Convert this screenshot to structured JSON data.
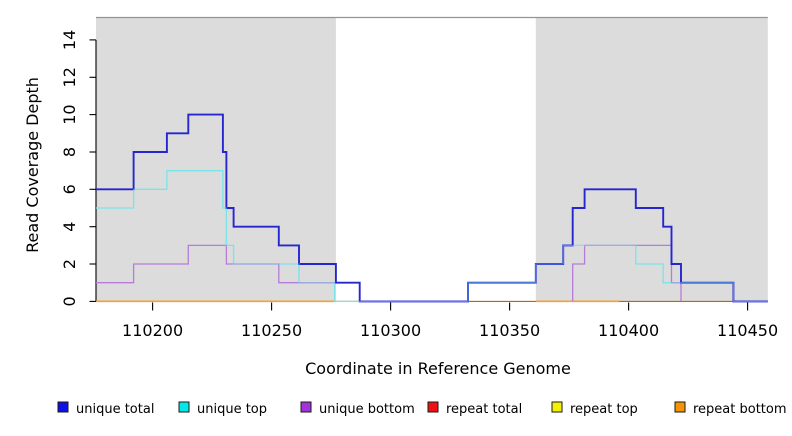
{
  "chart_data": {
    "type": "line",
    "subtype": "step-coverage",
    "title": "",
    "xlabel": "Coordinate in Reference Genome",
    "ylabel": "Read Coverage Depth",
    "xlim": [
      110176,
      110458
    ],
    "ylim": [
      0,
      15.2
    ],
    "x_ticks": [
      110200,
      110250,
      110300,
      110350,
      110400,
      110450
    ],
    "y_ticks": [
      0,
      2,
      4,
      6,
      8,
      10,
      12,
      14
    ],
    "grid": false,
    "legend_position": "bottom",
    "top_border_color": "#949494",
    "axis_color": "#000000",
    "shaded_regions": {
      "color": "#dcdcdc",
      "ranges": [
        [
          110176.2,
          110277
        ],
        [
          110361,
          110458.5
        ]
      ]
    },
    "series": [
      {
        "name": "unique total",
        "line_color": "#2626cf",
        "line_width": 1.9,
        "segments": [
          [
            [
              110176.2,
              6
            ],
            [
              110192,
              8
            ],
            [
              110206,
              9
            ],
            [
              110215,
              10
            ],
            [
              110229.5,
              8
            ],
            [
              110231,
              5
            ],
            [
              110234,
              4
            ],
            [
              110253,
              3
            ],
            [
              110261.5,
              2
            ],
            [
              110277,
              1
            ],
            [
              110287,
              0
            ],
            [
              110332.5,
              1
            ],
            [
              110361,
              2
            ],
            [
              110372.5,
              3
            ],
            [
              110376.5,
              5
            ],
            [
              110381.5,
              6
            ],
            [
              110403,
              5
            ],
            [
              110414.5,
              4
            ],
            [
              110418,
              2
            ],
            [
              110422,
              1
            ],
            [
              110444,
              0
            ],
            [
              110458.5,
              0
            ]
          ]
        ]
      },
      {
        "name": "unique top",
        "line_color": "#79e5e9",
        "line_width": 1.3,
        "segments": [
          [
            [
              110176.2,
              5
            ],
            [
              110192,
              6
            ],
            [
              110206,
              7
            ],
            [
              110229.5,
              5
            ],
            [
              110231,
              3
            ],
            [
              110234,
              2
            ],
            [
              110261.5,
              1
            ],
            [
              110276.5,
              0
            ],
            [
              110332.5,
              1
            ],
            [
              110361,
              2
            ],
            [
              110372.5,
              3
            ],
            [
              110403,
              2
            ],
            [
              110414.5,
              1
            ],
            [
              110444,
              0
            ],
            [
              110458.5,
              0
            ]
          ]
        ]
      },
      {
        "name": "unique bottom",
        "line_color": "#b77cd8",
        "line_width": 1.3,
        "segments": [
          [
            [
              110176.2,
              1
            ],
            [
              110192,
              2
            ],
            [
              110215,
              3
            ],
            [
              110231,
              2
            ],
            [
              110253,
              1
            ],
            [
              110287,
              0
            ]
          ],
          [
            [
              110376.5,
              0
            ],
            [
              110376.5,
              2
            ],
            [
              110381.5,
              3
            ],
            [
              110418,
              1
            ],
            [
              110422,
              0
            ]
          ]
        ]
      },
      {
        "name": "repeat total",
        "line_color": "#c94f60",
        "line_width": 1.1,
        "segments": [
          [
            [
              110176.2,
              0
            ],
            [
              110458.5,
              0
            ]
          ]
        ]
      },
      {
        "name": "repeat top",
        "line_color": "#f0f000",
        "line_width": 1.1,
        "segments": [
          [
            [
              110176.2,
              0
            ],
            [
              110458.5,
              0
            ]
          ]
        ]
      },
      {
        "name": "repeat bottom",
        "line_color": "#ff9d1e",
        "line_width": 1.5,
        "segments": [
          [
            [
              110176.2,
              0
            ],
            [
              110277,
              0
            ]
          ],
          [
            [
              110361,
              0
            ],
            [
              110396,
              0
            ]
          ]
        ]
      }
    ],
    "draw_order": [
      4,
      3,
      5,
      1,
      2,
      0
    ],
    "legend": {
      "items": [
        {
          "label": "unique total",
          "fill": "#0f0fe8"
        },
        {
          "label": "unique top",
          "fill": "#00e8e8"
        },
        {
          "label": "unique bottom",
          "fill": "#a233d6"
        },
        {
          "label": "repeat total",
          "fill": "#ee1111"
        },
        {
          "label": "repeat top",
          "fill": "#f2f200"
        },
        {
          "label": "repeat bottom",
          "fill": "#f59300"
        }
      ],
      "swatch_border": "#1a1a1a"
    }
  }
}
